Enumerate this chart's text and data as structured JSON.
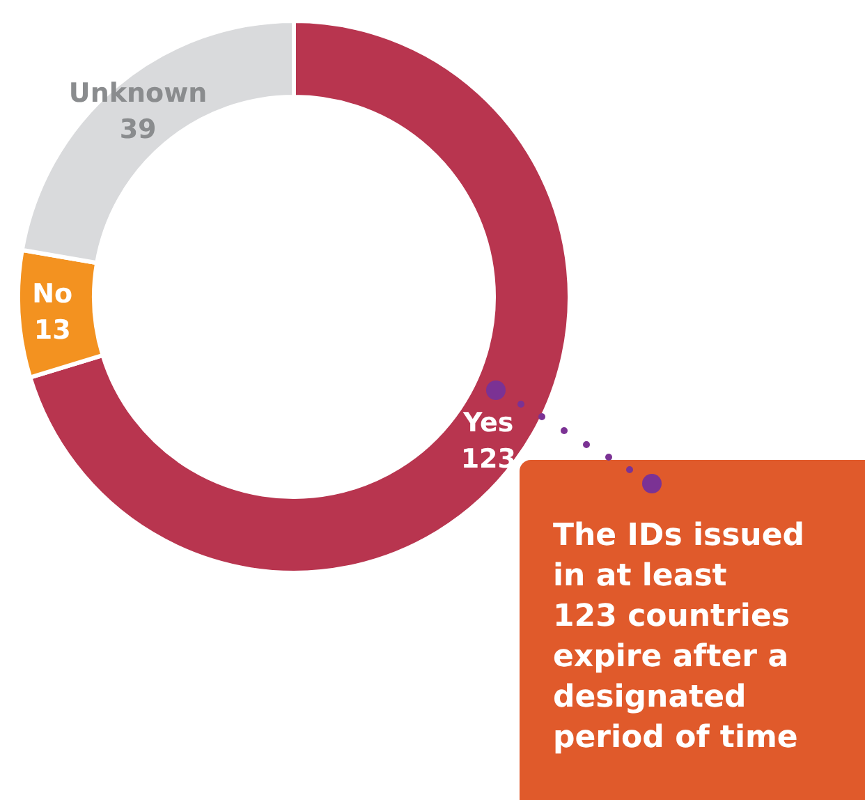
{
  "chart_data": {
    "type": "donut",
    "categories": [
      "Yes",
      "No",
      "Unknown"
    ],
    "values": [
      123,
      13,
      39
    ],
    "colors": [
      "#b8354f",
      "#f39220",
      "#d9dadc"
    ],
    "data_labels": true,
    "legend": false,
    "annotations": [
      "The IDs issued\nin at least\n123 countries\nexpire after a\ndesignated\nperiod of time"
    ]
  }
}
